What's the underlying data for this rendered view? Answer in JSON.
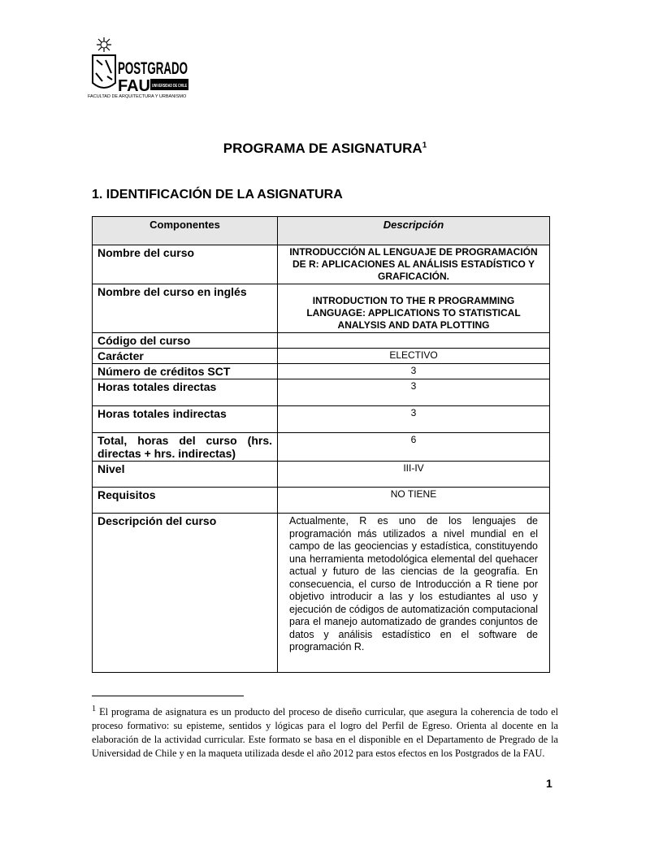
{
  "logo": {
    "title1": "POSTGRADO",
    "title2": "FAU",
    "badge": "UNIVERSIDAD DE CHILE",
    "subtitle": "FACULTAD DE ARQUITECTURA Y URBANISMO"
  },
  "title": "PROGRAMA DE ASIGNATURA",
  "title_footnote_ref": "1",
  "section": "1. IDENTIFICACIÓN DE LA ASIGNATURA",
  "table": {
    "headers": [
      "Componentes",
      "Descripción"
    ],
    "rows": [
      {
        "label": "Nombre del curso",
        "value": "INTRODUCCIÓN AL LENGUAJE DE PROGRAMACIÓN DE R: APLICACIONES AL ANÁLISIS ESTADÍSTICO Y GRAFICACIÓN."
      },
      {
        "label": "Nombre del curso en inglés",
        "value": "INTRODUCTION TO THE R PROGRAMMING LANGUAGE: APPLICATIONS TO STATISTICAL ANALYSIS AND DATA PLOTTING"
      },
      {
        "label": "Código del curso",
        "value": ""
      },
      {
        "label": "Carácter",
        "value": "ELECTIVO"
      },
      {
        "label": "Número de créditos SCT",
        "value": "3"
      },
      {
        "label": "Horas totales directas",
        "value": "3"
      },
      {
        "label": "Horas totales indirectas",
        "value": "3"
      },
      {
        "label": "Total, horas del curso (hrs. directas + hrs. indirectas)",
        "value": "6"
      },
      {
        "label": "Nivel",
        "value": "III-IV"
      },
      {
        "label": "Requisitos",
        "value": "NO TIENE"
      },
      {
        "label": "Descripción del curso",
        "value": "Actualmente, R es uno de los lenguajes de programación más utilizados a nivel mundial en el campo de las geociencias y estadística, constituyendo una herramienta metodológica elemental del quehacer actual y futuro de las ciencias de la geografía. En consecuencia, el curso de Introducción a R tiene por objetivo introducir a las y los estudiantes al uso y ejecución de códigos de automatización computacional para el manejo automatizado de grandes conjuntos de datos y análisis estadístico en el software de programación R."
      }
    ]
  },
  "footnote": {
    "mark": "1",
    "text": "El programa de asignatura es un producto del proceso de diseño curricular, que asegura la coherencia de todo el proceso formativo: su episteme, sentidos y lógicas para el logro del Perfil de Egreso. Orienta al docente en la elaboración de la actividad curricular. Este formato se basa en el disponible en el Departamento de Pregrado de la Universidad de Chile y en la maqueta utilizada desde el año 2012 para estos efectos en los Postgrados de la FAU."
  },
  "page_number": "1"
}
